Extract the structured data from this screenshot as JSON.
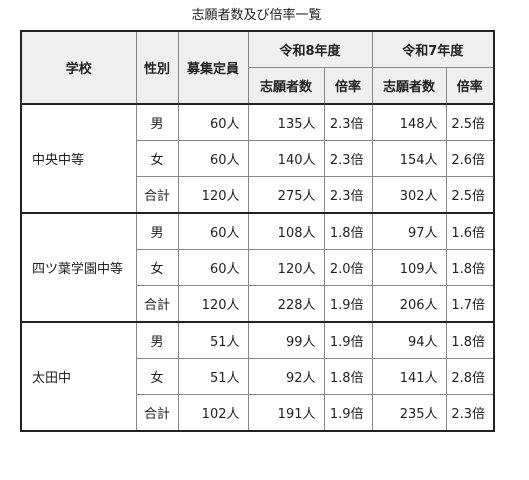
{
  "title": "志願者数及び倍率一覧",
  "headers": {
    "school": "学校",
    "sex": "性別",
    "capacity": "募集定員",
    "year_r8": "令和8年度",
    "year_r7": "令和7年度",
    "applicants": "志願者数",
    "ratio": "倍率"
  },
  "schools": [
    {
      "name": "中央中等",
      "rows": [
        {
          "sex": "男",
          "capacity": "60人",
          "r8_applicants": "135人",
          "r8_ratio": "2.3倍",
          "r7_applicants": "148人",
          "r7_ratio": "2.5倍"
        },
        {
          "sex": "女",
          "capacity": "60人",
          "r8_applicants": "140人",
          "r8_ratio": "2.3倍",
          "r7_applicants": "154人",
          "r7_ratio": "2.6倍"
        },
        {
          "sex": "合計",
          "capacity": "120人",
          "r8_applicants": "275人",
          "r8_ratio": "2.3倍",
          "r7_applicants": "302人",
          "r7_ratio": "2.5倍"
        }
      ]
    },
    {
      "name": "四ツ葉学園中等",
      "rows": [
        {
          "sex": "男",
          "capacity": "60人",
          "r8_applicants": "108人",
          "r8_ratio": "1.8倍",
          "r7_applicants": "97人",
          "r7_ratio": "1.6倍"
        },
        {
          "sex": "女",
          "capacity": "60人",
          "r8_applicants": "120人",
          "r8_ratio": "2.0倍",
          "r7_applicants": "109人",
          "r7_ratio": "1.8倍"
        },
        {
          "sex": "合計",
          "capacity": "120人",
          "r8_applicants": "228人",
          "r8_ratio": "1.9倍",
          "r7_applicants": "206人",
          "r7_ratio": "1.7倍"
        }
      ]
    },
    {
      "name": "太田中",
      "rows": [
        {
          "sex": "男",
          "capacity": "51人",
          "r8_applicants": "99人",
          "r8_ratio": "1.9倍",
          "r7_applicants": "94人",
          "r7_ratio": "1.8倍"
        },
        {
          "sex": "女",
          "capacity": "51人",
          "r8_applicants": "92人",
          "r8_ratio": "1.8倍",
          "r7_applicants": "141人",
          "r7_ratio": "2.8倍"
        },
        {
          "sex": "合計",
          "capacity": "102人",
          "r8_applicants": "191人",
          "r8_ratio": "1.9倍",
          "r7_applicants": "235人",
          "r7_ratio": "2.3倍"
        }
      ]
    }
  ]
}
